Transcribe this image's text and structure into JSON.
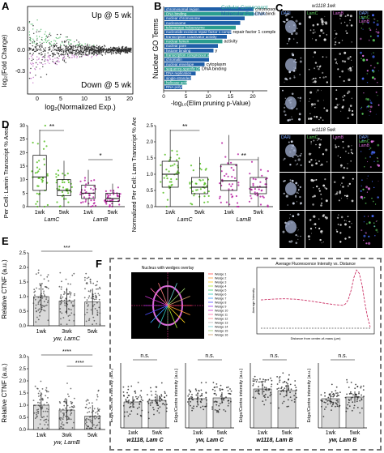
{
  "panel_labels": {
    "a": "A",
    "b": "B",
    "c": "C",
    "d": "D",
    "e": "E",
    "f": "F"
  },
  "panelA": {
    "ylabel": "log₂(Fold Change)",
    "xlabel": "log₂(Normalized Exp.)",
    "up_label": "Up @ 5 wk",
    "down_label": "Down @ 5 wk",
    "yticks": [
      "0.3",
      "0.0",
      "-0.3"
    ],
    "xticks": [
      "0",
      "5",
      "10",
      "15",
      "20"
    ]
  },
  "panelB": {
    "ylabel": "Nuclear GO Terms",
    "xlabel": "-log₁₀(Elim pruning p-Value)",
    "legend": [
      "Cellular Component",
      "Molecular Function"
    ],
    "xticks": [
      "0",
      "5",
      "10",
      "15",
      "20"
    ],
    "terms": [
      "chromosomal region",
      "DNA binding",
      "nuclear chromosome",
      "nucleosome",
      "telomerase holoenzyme",
      "nucleotide-excision repair factor 1 complex",
      "transcription coactivator activity",
      "nuclear lumen",
      "nuclear pore",
      "histone binding",
      "transcription corepressor activity",
      "chromatin",
      "nuclear envelope",
      "sequence-specific DNA binding",
      "DNA replication",
      "single-stranded DNA binding",
      "helicase activity",
      "RNA polymerase II activity"
    ],
    "term_labels": [
      "chromosomal region",
      "DNA binding",
      "",
      "",
      "",
      "repair factor 1 complex",
      "",
      "activity",
      "",
      "y",
      "",
      "",
      "cytoplasm",
      "DNA binding",
      "",
      "",
      "",
      ""
    ]
  },
  "panelC": {
    "top_title": "w1118 1wk",
    "bottom_title": "w1118 5wk",
    "channels": [
      "DAPI",
      "LamC",
      "LamB"
    ]
  },
  "panelD": {
    "left_ylabel": "Per Cell: Lamin Transcript % Area",
    "right_ylabel": "Normalized Per Cell: Lam Transcript % Area",
    "groups": [
      "1wk",
      "5wk",
      "1wk",
      "5wk"
    ],
    "gene_labels": [
      "LamC",
      "LamB"
    ],
    "sig": [
      "**",
      "*",
      "**",
      "**"
    ],
    "left_yticks": [
      "0",
      "5",
      "10",
      "15",
      "20",
      "25",
      "30"
    ],
    "right_yticks": [
      "0.0",
      "0.5",
      "1.0",
      "1.5",
      "2.0",
      "2.5"
    ]
  },
  "panelE": {
    "ylabel": "Relative CTNF (a.u.)",
    "top_caption": "yw, LamC",
    "bottom_caption": "yw, LamB",
    "groups": [
      "1wk",
      "3wk",
      "5wk"
    ],
    "top_sig": [
      "***"
    ],
    "bottom_sig": [
      "****",
      "****"
    ],
    "yticks_top": [
      "0.0",
      "0.5",
      "1.0",
      "1.5",
      "2.0",
      "2.5"
    ],
    "yticks_bottom": [
      "0.0",
      "0.5",
      "1.0",
      "1.5",
      "2.0",
      "2.5",
      "3.0"
    ]
  },
  "panelF": {
    "nucleus_title": "Nucleus with wedges overlay",
    "profile_title": "Average Fluorescence Intensity vs. Distance",
    "profile_xlabel": "Distance from center-of-mass (µm)",
    "profile_ylabel": "Average Intensity",
    "wedges": [
      "Wedge 1",
      "Wedge 2",
      "Wedge 3",
      "Wedge 4",
      "Wedge 5",
      "Wedge 6",
      "Wedge 7",
      "Wedge 8",
      "Wedge 9",
      "Wedge 10",
      "Wedge 11",
      "Wedge 12",
      "Wedge 13",
      "Wedge 14",
      "Wedge 15",
      "Wedge 16"
    ],
    "bar_ylabel": "Edge/Centre intensity (a.u.)",
    "captions": [
      "w1118, Lam C",
      "yw, Lam C",
      "w1118, Lam B",
      "yw, Lam B"
    ],
    "sig": "n.s.",
    "groups": [
      "1wk",
      "5wk"
    ]
  },
  "chart_data": [
    {
      "type": "box",
      "panel": "D-left",
      "categories": [
        "LamC 1wk",
        "LamC 5wk",
        "LamB 1wk",
        "LamB 5wk"
      ],
      "medians": [
        11,
        6,
        5,
        3
      ],
      "q1": [
        6,
        4,
        3,
        2
      ],
      "q3": [
        19,
        10,
        8,
        5
      ],
      "ylim": [
        0,
        30
      ]
    },
    {
      "type": "box",
      "panel": "D-right",
      "categories": [
        "LamC 1wk",
        "LamC 5wk",
        "LamB 1wk",
        "LamB 5wk"
      ],
      "medians": [
        1.0,
        0.6,
        0.8,
        0.6
      ],
      "q1": [
        0.6,
        0.4,
        0.5,
        0.4
      ],
      "q3": [
        1.4,
        0.9,
        1.3,
        0.9
      ],
      "ylim": [
        0,
        2.5
      ]
    },
    {
      "type": "bar",
      "panel": "E-top",
      "categories": [
        "1wk",
        "3wk",
        "5wk"
      ],
      "values": [
        1.0,
        0.85,
        0.82
      ],
      "ylim": [
        0,
        2.5
      ]
    },
    {
      "type": "bar",
      "panel": "E-bottom",
      "categories": [
        "1wk",
        "3wk",
        "5wk"
      ],
      "values": [
        1.0,
        0.8,
        0.55
      ],
      "ylim": [
        0,
        3.0
      ]
    },
    {
      "type": "bar",
      "panel": "F",
      "series": [
        {
          "name": "w1118, Lam C",
          "values": [
            1.6,
            1.7
          ]
        },
        {
          "name": "yw, Lam C",
          "values": [
            1.8,
            1.85
          ]
        },
        {
          "name": "w1118, Lam B",
          "values": [
            2.4,
            2.3
          ]
        },
        {
          "name": "yw, Lam B",
          "values": [
            1.8,
            1.9
          ]
        }
      ],
      "categories": [
        "1wk",
        "5wk"
      ],
      "ylim": [
        0,
        4
      ]
    },
    {
      "type": "bar",
      "panel": "B",
      "values": [
        22,
        20,
        18,
        17,
        16,
        15,
        14,
        13,
        12,
        11,
        10,
        10,
        9,
        8,
        7,
        6,
        5,
        4
      ],
      "xlim": [
        0,
        20
      ]
    }
  ]
}
